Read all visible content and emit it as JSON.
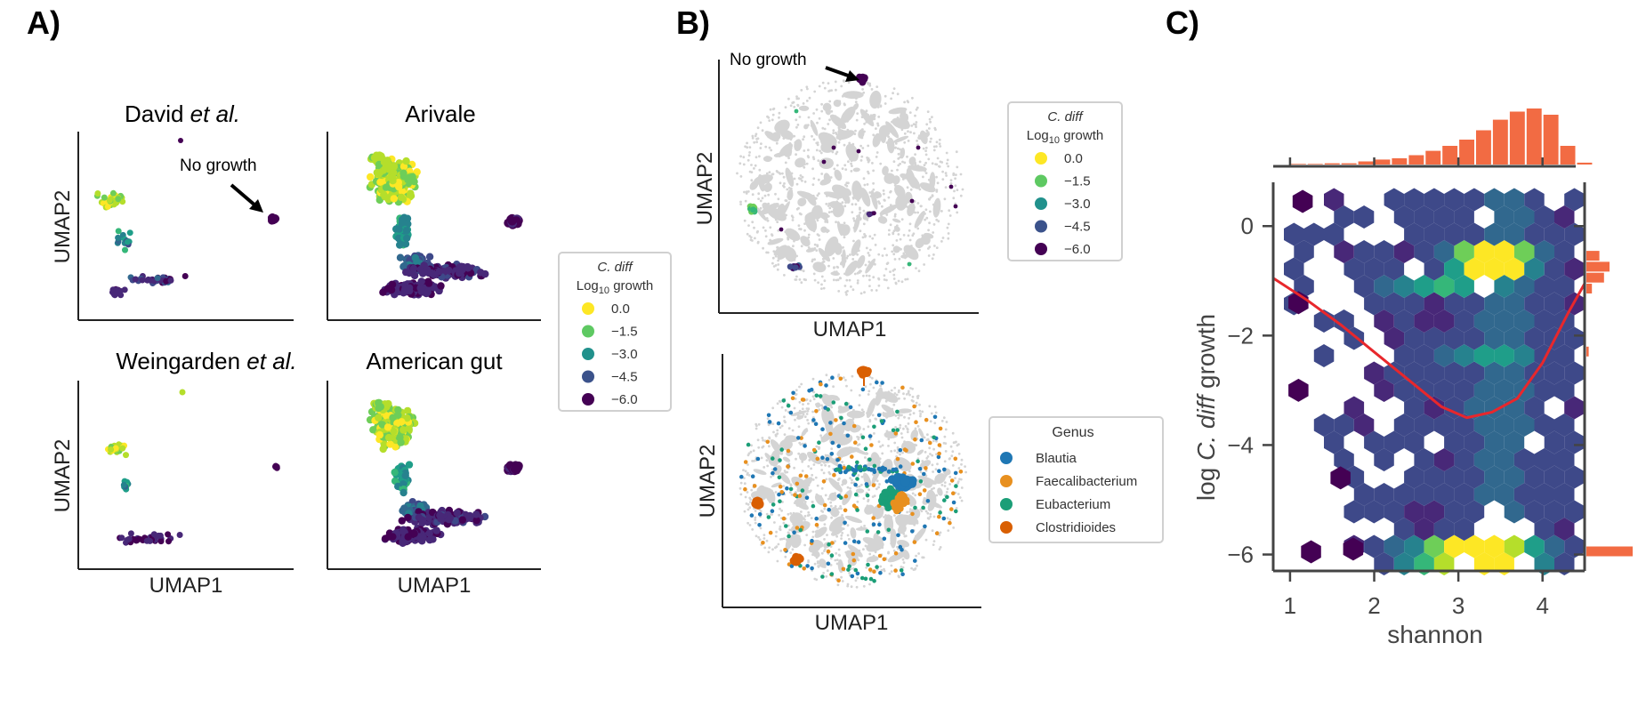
{
  "panels": {
    "a": {
      "label": "A)"
    },
    "b": {
      "label": "B)"
    },
    "c": {
      "label": "C)"
    }
  },
  "colorbar_legend": {
    "title_species": "C. diff",
    "title_prefix": "Log",
    "title_sub": "10",
    "title_suffix": " growth",
    "entries": [
      {
        "label": "0.0",
        "color": "#fde725"
      },
      {
        "label": "−1.5",
        "color": "#5ec962"
      },
      {
        "label": "−3.0",
        "color": "#21918c"
      },
      {
        "label": "−4.5",
        "color": "#3b528b"
      },
      {
        "label": "−6.0",
        "color": "#440154"
      }
    ]
  },
  "genus_legend": {
    "title": "Genus",
    "entries": [
      {
        "label": "Blautia",
        "color": "#1f77b4"
      },
      {
        "label": "Faecalibacterium",
        "color": "#e8901f"
      },
      {
        "label": "Eubacterium",
        "color": "#1b9e77"
      },
      {
        "label": "Clostridioides",
        "color": "#d95f02"
      }
    ]
  },
  "annotations": {
    "no_growth": "No growth"
  },
  "chart_data": [
    {
      "id": "A-david",
      "type": "scatter",
      "title_main": "David ",
      "title_italic": "et al.",
      "xlabel": "",
      "ylabel": "UMAP2",
      "color_by": "Log10 C. diff growth"
    },
    {
      "id": "A-arivale",
      "type": "scatter",
      "title_main": "Arivale",
      "xlabel": "",
      "ylabel": "",
      "color_by": "Log10 C. diff growth"
    },
    {
      "id": "A-weingarden",
      "type": "scatter",
      "title_main": "Weingarden ",
      "title_italic": "et al.",
      "xlabel": "UMAP1",
      "ylabel": "UMAP2",
      "color_by": "Log10 C. diff growth"
    },
    {
      "id": "A-americangut",
      "type": "scatter",
      "title_main": "American gut",
      "xlabel": "UMAP1",
      "ylabel": "",
      "color_by": "Log10 C. diff growth"
    },
    {
      "id": "B-growth",
      "type": "scatter",
      "xlabel": "UMAP1",
      "ylabel": "UMAP2",
      "color_by": "Log10 C. diff growth"
    },
    {
      "id": "B-genus",
      "type": "scatter",
      "xlabel": "",
      "ylabel": "UMAP2",
      "color_by": "Genus",
      "series": [
        "Blautia",
        "Faecalibacterium",
        "Eubacterium",
        "Clostridioides"
      ]
    },
    {
      "id": "C-hexbin",
      "type": "heatmap",
      "xlabel": "shannon",
      "ylabel_prefix": "log ",
      "ylabel_italic": "C. diff",
      "ylabel_suffix": " growth",
      "xlim": [
        0.8,
        4.5
      ],
      "ylim": [
        -6.3,
        0.8
      ],
      "xticks": [
        "1",
        "2",
        "3",
        "4"
      ],
      "yticks": [
        "0",
        "−2",
        "−4",
        "−6"
      ],
      "trend_line": {
        "x": [
          0.8,
          1.2,
          1.6,
          2.0,
          2.4,
          2.8,
          3.1,
          3.4,
          3.7,
          4.0,
          4.3,
          4.5
        ],
        "y": [
          -0.95,
          -1.35,
          -1.8,
          -2.3,
          -2.8,
          -3.3,
          -3.5,
          -3.4,
          -3.15,
          -2.5,
          -1.6,
          -1.05
        ],
        "color": "#e8272c"
      },
      "marginal_x": {
        "bins": [
          1.0,
          1.2,
          1.4,
          1.6,
          1.8,
          2.0,
          2.2,
          2.4,
          2.6,
          2.8,
          3.0,
          3.2,
          3.4,
          3.6,
          3.8,
          4.0,
          4.2,
          4.4
        ],
        "heights": [
          0.01,
          0.01,
          0.02,
          0.02,
          0.05,
          0.08,
          0.1,
          0.15,
          0.22,
          0.3,
          0.4,
          0.55,
          0.72,
          0.85,
          0.9,
          0.8,
          0.3,
          0.03
        ],
        "color": "#f26b43"
      },
      "marginal_y": {
        "y": [
          -0.55,
          -0.75,
          -0.95,
          -1.15,
          -2.3,
          -5.95
        ],
        "widths": [
          0.28,
          0.5,
          0.38,
          0.12,
          0.05,
          1.0
        ],
        "color": "#f26b43"
      }
    }
  ]
}
